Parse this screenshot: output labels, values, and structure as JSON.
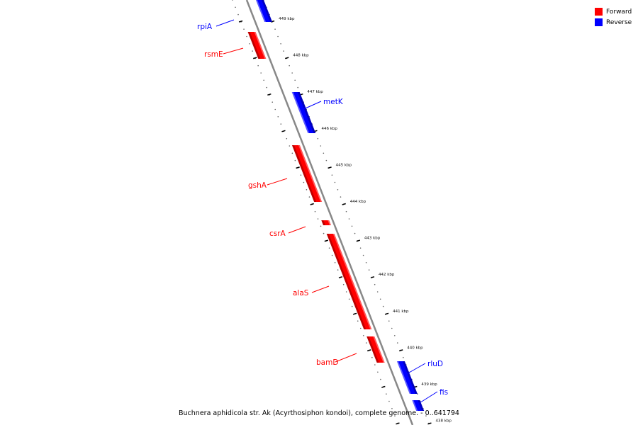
{
  "caption": "Buchnera aphidicola str. Ak (Acyrthosiphon kondoi), complete genome. - 0..641794",
  "colors": {
    "forward": "#ff0000",
    "reverse": "#0000ff",
    "backbone": "#888888"
  },
  "legend": [
    {
      "label": "Forward",
      "color": "#ff0000"
    },
    {
      "label": "Reverse",
      "color": "#0000ff"
    }
  ],
  "kbp_ticks": [
    "449 kbp",
    "448 kbp",
    "447 kbp",
    "446 kbp",
    "445 kbp",
    "444 kbp",
    "443 kbp",
    "442 kbp",
    "441 kbp",
    "440 kbp",
    "439 kbp",
    "438 kbp"
  ],
  "genes": [
    {
      "name": "rpiA",
      "strand": "reverse"
    },
    {
      "name": "rsmE",
      "strand": "forward"
    },
    {
      "name": "metK",
      "strand": "reverse"
    },
    {
      "name": "gshA",
      "strand": "forward"
    },
    {
      "name": "csrA",
      "strand": "forward"
    },
    {
      "name": "alaS",
      "strand": "forward"
    },
    {
      "name": "bamD",
      "strand": "forward"
    },
    {
      "name": "rluD",
      "strand": "reverse"
    },
    {
      "name": "fis",
      "strand": "reverse"
    }
  ]
}
